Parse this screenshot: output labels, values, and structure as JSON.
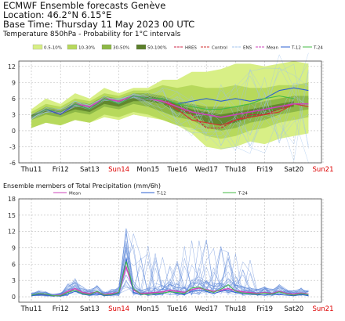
{
  "header": {
    "title": "ECMWF Ensemble forecasts Genève",
    "location": "Location:  46.2°N 6.15°E",
    "base_time": "Base Time: Thursday 11 May 2023 00 UTC",
    "subtitle": "Temperature 850hPa - Probability for 1°C intervals"
  },
  "colors": {
    "prob_0_10": "#d8ef86",
    "prob_10_30": "#b7d95c",
    "prob_30_50": "#8db846",
    "prob_50_100": "#5b7f2a",
    "hres": "#cc2244",
    "control": "#d03030",
    "ens": "#a0c3ee",
    "mean": "#cc44bb",
    "t12": "#2b5fd0",
    "t24": "#44bb44",
    "weekend": "#dd0000",
    "weekday": "#111111"
  },
  "chart_data": [
    {
      "type": "area",
      "title": "",
      "legend_placement": "top",
      "legend": {
        "prob_bins": [
          "0.5-10%",
          "10-30%",
          "30-50%",
          "50-100%"
        ],
        "lines": [
          "HRES",
          "Control",
          "ENS",
          "Mean",
          "T-12",
          "T-24"
        ]
      },
      "ylim": [
        -6,
        13
      ],
      "yticks": [
        "12",
        "9",
        "6",
        "3",
        "0",
        "-3",
        "-6"
      ],
      "days": [
        "Thu11",
        "Fri12",
        "Sat13",
        "Sun14",
        "Mon15",
        "Tue16",
        "Wed17",
        "Thu18",
        "Fri19",
        "Sat20",
        "Sun21"
      ],
      "weekend_days": [
        "Sun14",
        "Sun21"
      ],
      "x": [
        0,
        0.5,
        1,
        1.5,
        2,
        2.5,
        3,
        3.5,
        4,
        4.5,
        5,
        5.5,
        6,
        6.5,
        7,
        7.5,
        8,
        8.5,
        9,
        9.5
      ],
      "band_0_10": {
        "upper": [
          4,
          6,
          5,
          7,
          6,
          8,
          7,
          8,
          8,
          9.5,
          9.5,
          11,
          11,
          11.5,
          12.5,
          12.5,
          12,
          12.5,
          13,
          12.5
        ],
        "lower": [
          0.5,
          1.5,
          1,
          2,
          1.5,
          2.5,
          2,
          3,
          2.5,
          2,
          1,
          -0.5,
          -3,
          -3.5,
          -3,
          -2,
          -2.5,
          -1.5,
          -1,
          -0.5
        ]
      },
      "band_10_30": {
        "upper": [
          3.5,
          5,
          4.5,
          6,
          5.5,
          7,
          6.5,
          7.5,
          7.5,
          8.5,
          8,
          8.5,
          8,
          8,
          8.5,
          8,
          8,
          8.5,
          8.5,
          9
        ]
      },
      "band_30_50": {
        "upper": [
          3,
          4.5,
          4,
          5.5,
          5,
          6.5,
          6,
          7,
          7,
          6.5,
          5.5,
          5,
          4.5,
          4.5,
          4.5,
          5,
          5.5,
          6,
          6.5,
          6.5
        ],
        "lower": [
          2,
          3,
          2.5,
          3.5,
          3,
          4.5,
          4,
          5,
          4.5,
          3.5,
          2.5,
          2,
          0.5,
          0,
          0.5,
          1.5,
          2,
          3,
          3.5,
          4
        ]
      },
      "band_50_100": {
        "upper": [
          3,
          4,
          3.5,
          5,
          4.5,
          6,
          5.5,
          6.5,
          6.5,
          6,
          5,
          4,
          3.5,
          3,
          3.5,
          4,
          4.5,
          5,
          5.5,
          null
        ],
        "lower": [
          2.5,
          3.5,
          3,
          4,
          3.5,
          5,
          4.5,
          5.5,
          5.5,
          5,
          3.5,
          3,
          1.5,
          1,
          1.5,
          2.5,
          3,
          4,
          4.5,
          null
        ]
      },
      "series": [
        {
          "name": "HRES",
          "values": [
            2.5,
            4,
            3,
            5,
            4,
            6,
            5.5,
            6.5,
            6,
            6,
            4.5,
            3,
            0.5,
            0.5,
            2,
            3,
            3,
            4,
            5,
            null
          ]
        },
        {
          "name": "Control",
          "values": [
            2.5,
            4,
            3,
            5,
            4,
            6,
            5,
            6.5,
            6,
            5.5,
            4,
            2,
            1.5,
            1,
            2,
            2.5,
            3,
            3.5,
            5,
            4.5
          ]
        },
        {
          "name": "Mean",
          "values": [
            2.5,
            4,
            3.5,
            5,
            4.5,
            6,
            5.5,
            6.5,
            6,
            5.5,
            4.5,
            3.5,
            3,
            2.5,
            3,
            3.5,
            4,
            4.5,
            5,
            5
          ]
        },
        {
          "name": "T-12",
          "values": [
            2.5,
            4,
            3,
            5,
            4,
            6,
            5,
            6.5,
            6,
            6,
            5,
            5.5,
            6,
            5.5,
            6,
            5.5,
            6,
            7.5,
            8,
            7.5
          ]
        },
        {
          "name": "T-24",
          "values": [
            2.5,
            4,
            3.5,
            5,
            4,
            6,
            5,
            6.5,
            6,
            6,
            5,
            4.5,
            4,
            4,
            4.5,
            5,
            6,
            6.5,
            6,
            null
          ]
        }
      ]
    },
    {
      "type": "line",
      "title": "Ensemble members of Total Precipitation (mm/6h)",
      "legend_placement": "top",
      "legend": {
        "lines": [
          "Mean",
          "T-12",
          "T-24"
        ]
      },
      "ylim": [
        -1,
        18
      ],
      "yticks": [
        "18",
        "15",
        "12",
        "9",
        "6",
        "3",
        "0"
      ],
      "days": [
        "Thu11",
        "Fri12",
        "Sat13",
        "Sun14",
        "Mon15",
        "Tue16",
        "Wed17",
        "Thu18",
        "Fri19",
        "Sat20",
        "Sun21"
      ],
      "weekend_days": [
        "Sun14",
        "Sun21"
      ],
      "x": [
        0,
        0.25,
        0.5,
        0.75,
        1,
        1.25,
        1.5,
        1.75,
        2,
        2.25,
        2.5,
        2.75,
        3,
        3.25,
        3.5,
        3.75,
        4,
        4.25,
        4.5,
        4.75,
        5,
        5.25,
        5.5,
        5.75,
        6,
        6.25,
        6.5,
        6.75,
        7,
        7.25,
        7.5,
        7.75,
        8,
        8.25,
        8.5,
        8.75,
        9,
        9.25,
        9.5
      ],
      "series": [
        {
          "name": "Mean",
          "values": [
            0.3,
            0.5,
            0.4,
            0.2,
            0.3,
            1,
            1.5,
            0.8,
            0.6,
            0.9,
            0.4,
            0.6,
            0.8,
            5.5,
            1.2,
            0.6,
            0.7,
            0.8,
            0.9,
            1.2,
            1,
            0.8,
            1.3,
            1.6,
            1.3,
            1,
            1.2,
            1.5,
            1.1,
            0.9,
            0.8,
            0.6,
            0.8,
            0.6,
            1,
            0.6,
            0.5,
            0.7,
            0.5
          ]
        },
        {
          "name": "T-12",
          "values": [
            0.2,
            0.4,
            0.3,
            0.2,
            0.1,
            0.5,
            1,
            0.5,
            0.3,
            0.6,
            0.2,
            0.3,
            0.6,
            7,
            0.8,
            0.4,
            0.5,
            0.4,
            0.6,
            1,
            0.6,
            0.4,
            1,
            1.2,
            1,
            0.6,
            1,
            1.2,
            0.8,
            0.6,
            0.5,
            0.4,
            0.3,
            0.5,
            0.4,
            0.3,
            0.2,
            0.4,
            0.2
          ]
        },
        {
          "name": "T-24",
          "values": [
            0.3,
            0.6,
            0.5,
            0.2,
            0.2,
            0.8,
            1.2,
            0.6,
            0.4,
            1,
            0.3,
            0.4,
            0.8,
            6.5,
            1.5,
            0.5,
            0.4,
            0.6,
            0.7,
            0.9,
            0.8,
            0.6,
            1.6,
            1.8,
            1.2,
            0.8,
            1.4,
            2.2,
            1,
            0.7,
            0.6,
            0.5,
            0.7,
            0.5,
            0.9,
            0.5,
            0.3,
            0.6,
            0.4
          ]
        }
      ]
    }
  ]
}
